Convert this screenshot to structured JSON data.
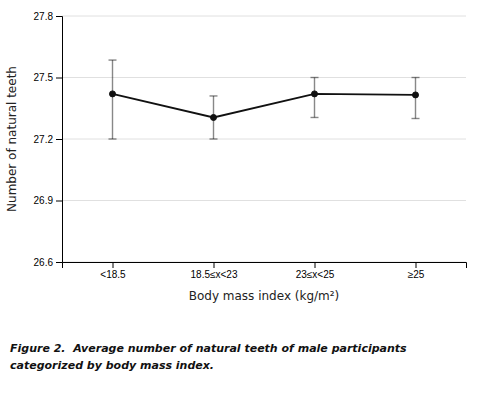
{
  "chart_data": {
    "type": "line",
    "categories": [
      "<18.5",
      "18.5≤x<23",
      "23≤x<25",
      "≥25"
    ],
    "values": [
      27.42,
      27.305,
      27.42,
      27.415
    ],
    "error_lower": [
      0.22,
      0.105,
      0.115,
      0.115
    ],
    "error_upper": [
      0.165,
      0.105,
      0.08,
      0.085
    ],
    "color": "#111111",
    "marker": "circle",
    "ylim": [
      26.6,
      27.8
    ],
    "yticks": [
      26.6,
      26.9,
      27.2,
      27.5,
      27.8
    ],
    "ylabel": "Number of natural teeth",
    "xlabel": "Body mass index (kg/m²)",
    "caption": [
      "Figure 2.  Average number of natural teeth of male participants",
      "categorized by body mass index."
    ],
    "grid": true
  }
}
